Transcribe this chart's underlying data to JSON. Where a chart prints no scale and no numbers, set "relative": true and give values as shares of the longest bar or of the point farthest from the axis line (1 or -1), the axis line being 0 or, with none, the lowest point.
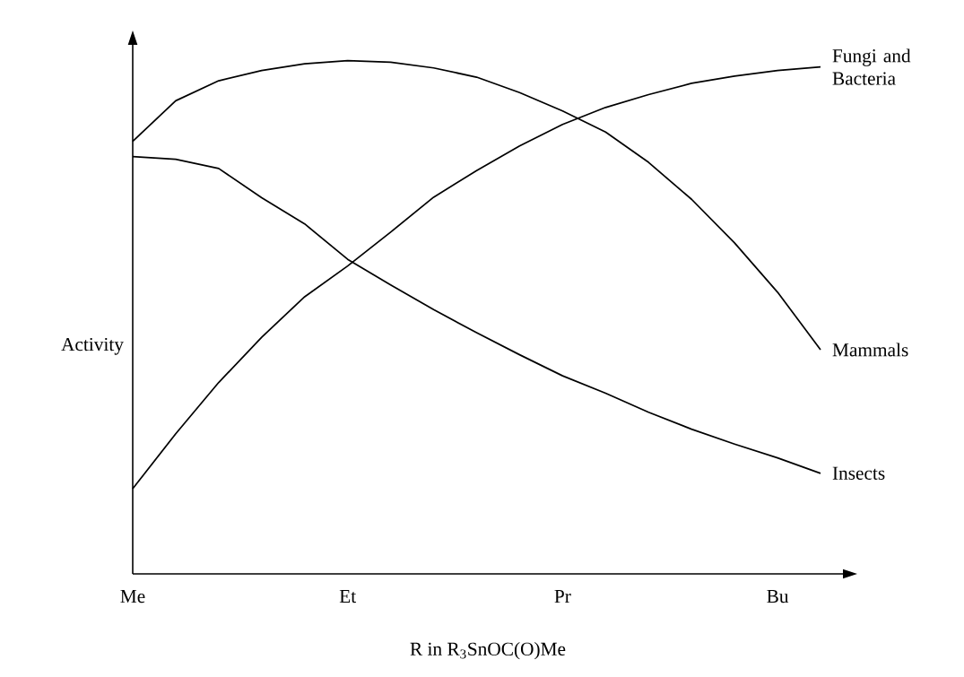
{
  "chart_data": {
    "type": "line",
    "relative": true,
    "xlabel": "R in R$_{3}$SnOC(O)Me",
    "ylabel": "Activity",
    "categories": [
      "Me",
      null,
      null,
      null,
      null,
      "Et",
      null,
      null,
      null,
      null,
      "Pr",
      null,
      null,
      null,
      null,
      "Bu",
      null
    ],
    "legend": false,
    "marker": "none",
    "line_style": "solid",
    "series": [
      {
        "name": "Fungi and Bacteria",
        "color": "#000000",
        "values": [
          0.166,
          0.273,
          0.373,
          0.461,
          0.54,
          0.6,
          0.666,
          0.734,
          0.786,
          0.834,
          0.876,
          0.909,
          0.934,
          0.956,
          0.97,
          0.981,
          0.988
        ]
      },
      {
        "name": "Mammals",
        "color": "#000000",
        "values": [
          0.843,
          0.922,
          0.961,
          0.981,
          0.994,
          1,
          0.997,
          0.986,
          0.968,
          0.938,
          0.902,
          0.861,
          0.802,
          0.73,
          0.645,
          0.549,
          0.437
        ]
      },
      {
        "name": "Insects",
        "color": "#000000",
        "values": [
          0.813,
          0.808,
          0.79,
          0.733,
          0.682,
          0.613,
          0.563,
          0.515,
          0.47,
          0.427,
          0.386,
          0.352,
          0.315,
          0.282,
          0.253,
          0.226,
          0.196
        ]
      }
    ]
  }
}
